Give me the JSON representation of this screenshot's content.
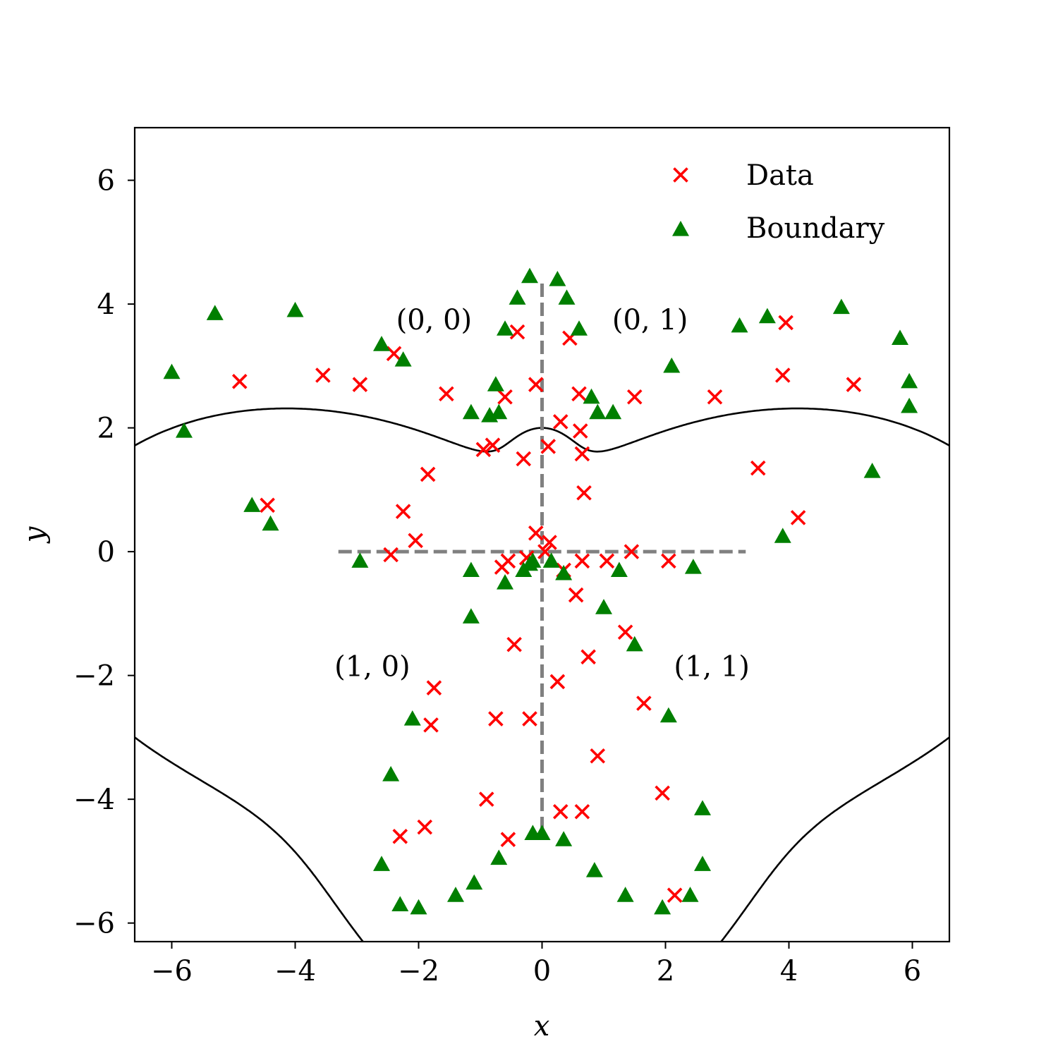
{
  "chart_data": {
    "type": "scatter",
    "title": "",
    "xlabel": "x",
    "ylabel": "y",
    "xlim": [
      -6.6,
      6.6
    ],
    "ylim": [
      -6.3,
      6.85
    ],
    "xticks": [
      -6,
      -4,
      -2,
      0,
      2,
      4,
      6
    ],
    "yticks": [
      -6,
      -4,
      -2,
      0,
      2,
      4,
      6
    ],
    "xtick_labels": [
      "−6",
      "−4",
      "−2",
      "0",
      "2",
      "4",
      "6"
    ],
    "ytick_labels": [
      "−6",
      "−4",
      "−2",
      "0",
      "2",
      "4",
      "6"
    ],
    "grid": false,
    "legend_position": "top-right",
    "colors": {
      "data": "#ff0000",
      "boundary_markers": "#007f00",
      "boundary_curve": "#000000",
      "divider": "#808080"
    },
    "legend": [
      {
        "label": "Data",
        "marker": "x",
        "color": "#ff0000"
      },
      {
        "label": "Boundary",
        "marker": "triangle",
        "color": "#007f00"
      }
    ],
    "annotations": [
      {
        "text": "(0, 0)",
        "x": -1.75,
        "y": 3.75
      },
      {
        "text": "(0, 1)",
        "x": 1.75,
        "y": 3.75
      },
      {
        "text": "(1, 0)",
        "x": -2.75,
        "y": -1.85
      },
      {
        "text": "(1, 1)",
        "x": 2.75,
        "y": -1.85
      }
    ],
    "dividers": [
      {
        "x": [
          -3.3,
          3.3
        ],
        "y": [
          0,
          0
        ]
      },
      {
        "x": [
          0,
          0
        ],
        "y": [
          -4.5,
          4.4
        ]
      }
    ],
    "curve_formula": "r = 4 - 2*sin(theta) + 3*cos(theta)^2 - sin(theta)^3 + cos(4*theta)",
    "series": [
      {
        "name": "Data",
        "marker": "x",
        "points": [
          [
            -4.9,
            2.75
          ],
          [
            -3.55,
            2.85
          ],
          [
            -2.95,
            2.7
          ],
          [
            -2.4,
            3.2
          ],
          [
            -1.55,
            2.55
          ],
          [
            -1.85,
            1.25
          ],
          [
            -2.25,
            0.65
          ],
          [
            -2.05,
            0.18
          ],
          [
            -2.45,
            -0.05
          ],
          [
            -4.45,
            0.75
          ],
          [
            -0.95,
            1.65
          ],
          [
            -0.8,
            1.72
          ],
          [
            -0.6,
            2.5
          ],
          [
            -0.4,
            3.55
          ],
          [
            -0.3,
            1.5
          ],
          [
            -0.1,
            2.7
          ],
          [
            0.1,
            1.7
          ],
          [
            0.3,
            2.1
          ],
          [
            0.45,
            3.45
          ],
          [
            0.6,
            2.55
          ],
          [
            0.62,
            1.95
          ],
          [
            0.65,
            1.58
          ],
          [
            0.68,
            0.95
          ],
          [
            -0.1,
            0.3
          ],
          [
            0.12,
            0.15
          ],
          [
            0.05,
            0.0
          ],
          [
            -0.25,
            -0.1
          ],
          [
            -0.55,
            -0.15
          ],
          [
            -0.65,
            -0.25
          ],
          [
            0.35,
            -0.3
          ],
          [
            0.65,
            -0.15
          ],
          [
            1.05,
            -0.15
          ],
          [
            1.45,
            0.0
          ],
          [
            2.05,
            -0.15
          ],
          [
            0.55,
            -0.7
          ],
          [
            1.35,
            -1.3
          ],
          [
            1.65,
            -2.45
          ],
          [
            0.75,
            -1.7
          ],
          [
            0.25,
            -2.1
          ],
          [
            0.9,
            -3.3
          ],
          [
            0.3,
            -4.2
          ],
          [
            0.65,
            -4.2
          ],
          [
            1.95,
            -3.9
          ],
          [
            2.15,
            -5.55
          ],
          [
            -0.45,
            -1.5
          ],
          [
            -1.75,
            -2.2
          ],
          [
            -1.8,
            -2.8
          ],
          [
            -0.75,
            -2.7
          ],
          [
            -0.2,
            -2.7
          ],
          [
            -0.9,
            -4.0
          ],
          [
            -1.9,
            -4.45
          ],
          [
            -2.3,
            -4.6
          ],
          [
            -0.55,
            -4.65
          ],
          [
            1.5,
            2.5
          ],
          [
            2.8,
            2.5
          ],
          [
            3.95,
            3.7
          ],
          [
            3.9,
            2.85
          ],
          [
            5.05,
            2.7
          ],
          [
            3.5,
            1.35
          ],
          [
            4.15,
            0.55
          ]
        ]
      },
      {
        "name": "Boundary",
        "marker": "triangle",
        "points": [
          [
            -0.2,
            4.45
          ],
          [
            0.25,
            4.4
          ],
          [
            -0.4,
            4.1
          ],
          [
            0.4,
            4.1
          ],
          [
            -0.6,
            3.6
          ],
          [
            0.6,
            3.6
          ],
          [
            -0.75,
            2.7
          ],
          [
            0.8,
            2.5
          ],
          [
            -0.85,
            2.2
          ],
          [
            -0.7,
            2.25
          ],
          [
            -1.15,
            2.25
          ],
          [
            0.9,
            2.25
          ],
          [
            1.15,
            2.25
          ],
          [
            -2.6,
            3.35
          ],
          [
            -2.25,
            3.1
          ],
          [
            -4.0,
            3.9
          ],
          [
            -5.3,
            3.85
          ],
          [
            -6.0,
            2.9
          ],
          [
            -5.8,
            1.95
          ],
          [
            -4.7,
            0.75
          ],
          [
            -4.4,
            0.45
          ],
          [
            -2.95,
            -0.15
          ],
          [
            -1.15,
            -0.3
          ],
          [
            -0.2,
            -0.2
          ],
          [
            -0.3,
            -0.3
          ],
          [
            -0.15,
            -0.15
          ],
          [
            0.15,
            -0.15
          ],
          [
            0.35,
            -0.35
          ],
          [
            1.25,
            -0.3
          ],
          [
            2.45,
            -0.25
          ],
          [
            3.9,
            0.25
          ],
          [
            5.35,
            1.3
          ],
          [
            5.95,
            2.35
          ],
          [
            5.95,
            2.75
          ],
          [
            5.8,
            3.45
          ],
          [
            4.85,
            3.95
          ],
          [
            3.65,
            3.8
          ],
          [
            3.2,
            3.65
          ],
          [
            2.1,
            3.0
          ],
          [
            -1.15,
            -1.05
          ],
          [
            -0.6,
            -0.5
          ],
          [
            1.0,
            -0.9
          ],
          [
            1.5,
            -1.5
          ],
          [
            2.05,
            -2.65
          ],
          [
            2.6,
            -4.15
          ],
          [
            2.6,
            -5.05
          ],
          [
            2.4,
            -5.55
          ],
          [
            1.95,
            -5.75
          ],
          [
            1.35,
            -5.55
          ],
          [
            0.85,
            -5.15
          ],
          [
            0.35,
            -4.65
          ],
          [
            0.0,
            -4.55
          ],
          [
            -0.15,
            -4.55
          ],
          [
            -0.7,
            -4.95
          ],
          [
            -1.1,
            -5.35
          ],
          [
            -1.4,
            -5.55
          ],
          [
            -2.0,
            -5.75
          ],
          [
            -2.3,
            -5.7
          ],
          [
            -2.6,
            -5.05
          ],
          [
            -2.45,
            -3.6
          ],
          [
            -2.1,
            -2.7
          ]
        ]
      }
    ]
  }
}
